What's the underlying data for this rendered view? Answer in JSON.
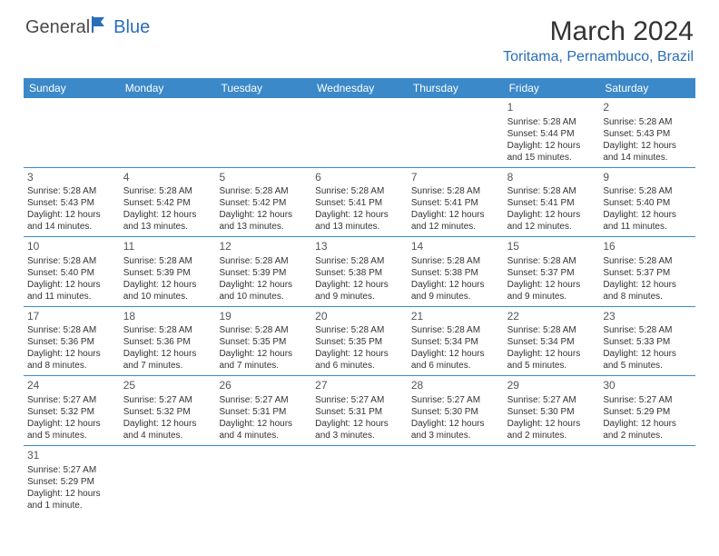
{
  "logo": {
    "part1": "General",
    "part2": "Blue"
  },
  "title": "March 2024",
  "location": "Toritama, Pernambuco, Brazil",
  "colors": {
    "header_bg": "#3b89c9",
    "header_text": "#ffffff",
    "accent": "#2a6db8",
    "text": "#333333",
    "border": "#3b89c9",
    "background": "#ffffff"
  },
  "fonts": {
    "title_size": 30,
    "location_size": 16,
    "dayhead_size": 12,
    "cell_size": 10
  },
  "dayNames": [
    "Sunday",
    "Monday",
    "Tuesday",
    "Wednesday",
    "Thursday",
    "Friday",
    "Saturday"
  ],
  "weeks": [
    [
      null,
      null,
      null,
      null,
      null,
      {
        "d": "1",
        "sr": "Sunrise: 5:28 AM",
        "ss": "Sunset: 5:44 PM",
        "dl1": "Daylight: 12 hours",
        "dl2": "and 15 minutes."
      },
      {
        "d": "2",
        "sr": "Sunrise: 5:28 AM",
        "ss": "Sunset: 5:43 PM",
        "dl1": "Daylight: 12 hours",
        "dl2": "and 14 minutes."
      }
    ],
    [
      {
        "d": "3",
        "sr": "Sunrise: 5:28 AM",
        "ss": "Sunset: 5:43 PM",
        "dl1": "Daylight: 12 hours",
        "dl2": "and 14 minutes."
      },
      {
        "d": "4",
        "sr": "Sunrise: 5:28 AM",
        "ss": "Sunset: 5:42 PM",
        "dl1": "Daylight: 12 hours",
        "dl2": "and 13 minutes."
      },
      {
        "d": "5",
        "sr": "Sunrise: 5:28 AM",
        "ss": "Sunset: 5:42 PM",
        "dl1": "Daylight: 12 hours",
        "dl2": "and 13 minutes."
      },
      {
        "d": "6",
        "sr": "Sunrise: 5:28 AM",
        "ss": "Sunset: 5:41 PM",
        "dl1": "Daylight: 12 hours",
        "dl2": "and 13 minutes."
      },
      {
        "d": "7",
        "sr": "Sunrise: 5:28 AM",
        "ss": "Sunset: 5:41 PM",
        "dl1": "Daylight: 12 hours",
        "dl2": "and 12 minutes."
      },
      {
        "d": "8",
        "sr": "Sunrise: 5:28 AM",
        "ss": "Sunset: 5:41 PM",
        "dl1": "Daylight: 12 hours",
        "dl2": "and 12 minutes."
      },
      {
        "d": "9",
        "sr": "Sunrise: 5:28 AM",
        "ss": "Sunset: 5:40 PM",
        "dl1": "Daylight: 12 hours",
        "dl2": "and 11 minutes."
      }
    ],
    [
      {
        "d": "10",
        "sr": "Sunrise: 5:28 AM",
        "ss": "Sunset: 5:40 PM",
        "dl1": "Daylight: 12 hours",
        "dl2": "and 11 minutes."
      },
      {
        "d": "11",
        "sr": "Sunrise: 5:28 AM",
        "ss": "Sunset: 5:39 PM",
        "dl1": "Daylight: 12 hours",
        "dl2": "and 10 minutes."
      },
      {
        "d": "12",
        "sr": "Sunrise: 5:28 AM",
        "ss": "Sunset: 5:39 PM",
        "dl1": "Daylight: 12 hours",
        "dl2": "and 10 minutes."
      },
      {
        "d": "13",
        "sr": "Sunrise: 5:28 AM",
        "ss": "Sunset: 5:38 PM",
        "dl1": "Daylight: 12 hours",
        "dl2": "and 9 minutes."
      },
      {
        "d": "14",
        "sr": "Sunrise: 5:28 AM",
        "ss": "Sunset: 5:38 PM",
        "dl1": "Daylight: 12 hours",
        "dl2": "and 9 minutes."
      },
      {
        "d": "15",
        "sr": "Sunrise: 5:28 AM",
        "ss": "Sunset: 5:37 PM",
        "dl1": "Daylight: 12 hours",
        "dl2": "and 9 minutes."
      },
      {
        "d": "16",
        "sr": "Sunrise: 5:28 AM",
        "ss": "Sunset: 5:37 PM",
        "dl1": "Daylight: 12 hours",
        "dl2": "and 8 minutes."
      }
    ],
    [
      {
        "d": "17",
        "sr": "Sunrise: 5:28 AM",
        "ss": "Sunset: 5:36 PM",
        "dl1": "Daylight: 12 hours",
        "dl2": "and 8 minutes."
      },
      {
        "d": "18",
        "sr": "Sunrise: 5:28 AM",
        "ss": "Sunset: 5:36 PM",
        "dl1": "Daylight: 12 hours",
        "dl2": "and 7 minutes."
      },
      {
        "d": "19",
        "sr": "Sunrise: 5:28 AM",
        "ss": "Sunset: 5:35 PM",
        "dl1": "Daylight: 12 hours",
        "dl2": "and 7 minutes."
      },
      {
        "d": "20",
        "sr": "Sunrise: 5:28 AM",
        "ss": "Sunset: 5:35 PM",
        "dl1": "Daylight: 12 hours",
        "dl2": "and 6 minutes."
      },
      {
        "d": "21",
        "sr": "Sunrise: 5:28 AM",
        "ss": "Sunset: 5:34 PM",
        "dl1": "Daylight: 12 hours",
        "dl2": "and 6 minutes."
      },
      {
        "d": "22",
        "sr": "Sunrise: 5:28 AM",
        "ss": "Sunset: 5:34 PM",
        "dl1": "Daylight: 12 hours",
        "dl2": "and 5 minutes."
      },
      {
        "d": "23",
        "sr": "Sunrise: 5:28 AM",
        "ss": "Sunset: 5:33 PM",
        "dl1": "Daylight: 12 hours",
        "dl2": "and 5 minutes."
      }
    ],
    [
      {
        "d": "24",
        "sr": "Sunrise: 5:27 AM",
        "ss": "Sunset: 5:32 PM",
        "dl1": "Daylight: 12 hours",
        "dl2": "and 5 minutes."
      },
      {
        "d": "25",
        "sr": "Sunrise: 5:27 AM",
        "ss": "Sunset: 5:32 PM",
        "dl1": "Daylight: 12 hours",
        "dl2": "and 4 minutes."
      },
      {
        "d": "26",
        "sr": "Sunrise: 5:27 AM",
        "ss": "Sunset: 5:31 PM",
        "dl1": "Daylight: 12 hours",
        "dl2": "and 4 minutes."
      },
      {
        "d": "27",
        "sr": "Sunrise: 5:27 AM",
        "ss": "Sunset: 5:31 PM",
        "dl1": "Daylight: 12 hours",
        "dl2": "and 3 minutes."
      },
      {
        "d": "28",
        "sr": "Sunrise: 5:27 AM",
        "ss": "Sunset: 5:30 PM",
        "dl1": "Daylight: 12 hours",
        "dl2": "and 3 minutes."
      },
      {
        "d": "29",
        "sr": "Sunrise: 5:27 AM",
        "ss": "Sunset: 5:30 PM",
        "dl1": "Daylight: 12 hours",
        "dl2": "and 2 minutes."
      },
      {
        "d": "30",
        "sr": "Sunrise: 5:27 AM",
        "ss": "Sunset: 5:29 PM",
        "dl1": "Daylight: 12 hours",
        "dl2": "and 2 minutes."
      }
    ],
    [
      {
        "d": "31",
        "sr": "Sunrise: 5:27 AM",
        "ss": "Sunset: 5:29 PM",
        "dl1": "Daylight: 12 hours",
        "dl2": "and 1 minute."
      },
      null,
      null,
      null,
      null,
      null,
      null
    ]
  ]
}
